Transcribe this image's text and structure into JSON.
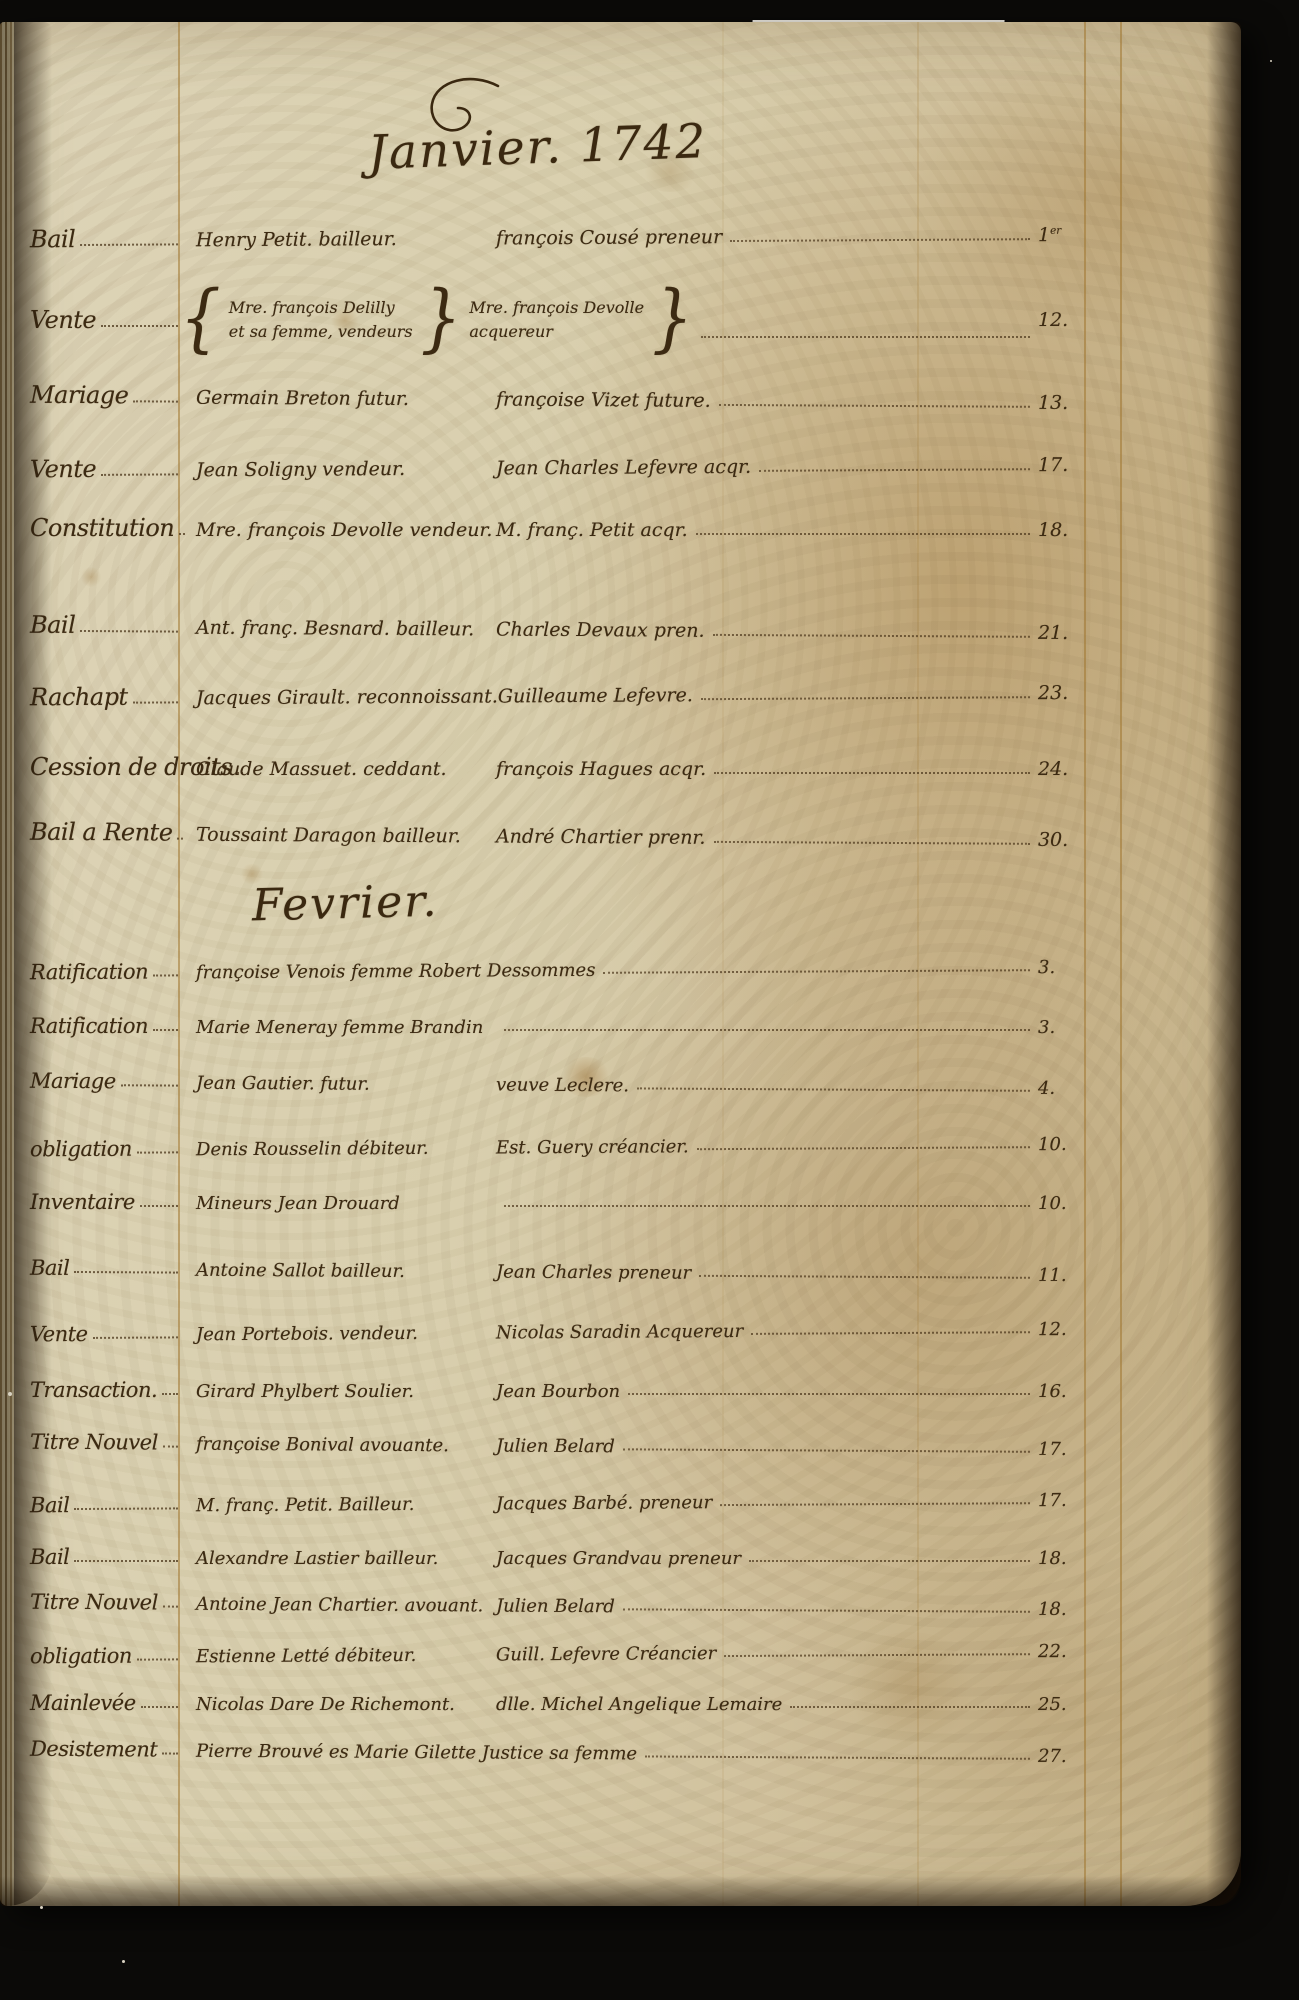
{
  "register": {
    "sections": [
      {
        "title": "Janvier. 1742",
        "entries": [
          {
            "act": "Bail",
            "party1": "Henry Petit. bailleur.",
            "party2": "françois Cousé preneur",
            "page": "1",
            "page_sup": "er"
          },
          {
            "act": "Vente",
            "braced": true,
            "party1_line1": "Mre. françois Delilly",
            "party1_line2": "et sa femme, vendeurs",
            "party2_line1": "Mre. françois Devolle",
            "party2_line2": "acquereur",
            "page": "12."
          },
          {
            "act": "Mariage",
            "party1": "Germain Breton futur.",
            "party2": "françoise Vizet future.",
            "page": "13."
          },
          {
            "act": "Vente",
            "party1": "Jean Soligny vendeur.",
            "party2": "Jean Charles Lefevre acqr.",
            "page": "17."
          },
          {
            "act": "Constitution",
            "party1": "Mre. françois Devolle vendeur.",
            "party2": "M. franç. Petit acqr.",
            "page": "18."
          },
          {
            "act": "Bail",
            "party1": "Ant. franç. Besnard. bailleur.",
            "party2": "Charles Devaux pren.",
            "page": "21."
          },
          {
            "act": "Rachapt",
            "party1": "Jacques Girault. reconnoissant.",
            "party2": "Guilleaume Lefevre.",
            "page": "23."
          },
          {
            "act": "Cession de droits",
            "party1": "Claude Massuet. ceddant.",
            "party2": "françois Hagues acqr.",
            "page": "24."
          },
          {
            "act": "Bail a Rente",
            "party1": "Toussaint Daragon bailleur.",
            "party2": "André Chartier prenr.",
            "page": "30."
          }
        ]
      },
      {
        "title": "Fevrier.",
        "entries": [
          {
            "act": "Ratification",
            "party1": "françoise Venois femme Robert Dessommes",
            "party2": "",
            "page": "3."
          },
          {
            "act": "Ratification",
            "party1": "Marie Meneray femme Brandin",
            "party2": "",
            "page": "3."
          },
          {
            "act": "Mariage",
            "party1": "Jean Gautier. futur.",
            "party2": "veuve Leclere.",
            "page": "4."
          },
          {
            "act": "obligation",
            "party1": "Denis Rousselin débiteur.",
            "party2": "Est. Guery créancier.",
            "page": "10."
          },
          {
            "act": "Inventaire",
            "party1": "Mineurs Jean Drouard",
            "party2": "",
            "page": "10."
          },
          {
            "act": "Bail",
            "party1": "Antoine Sallot bailleur.",
            "party2": "Jean Charles preneur",
            "page": "11."
          },
          {
            "act": "Vente",
            "party1": "Jean Portebois. vendeur.",
            "party2": "Nicolas Saradin Acquereur",
            "page": "12."
          },
          {
            "act": "Transaction.",
            "party1": "Girard Phylbert Soulier.",
            "party2": "Jean Bourbon",
            "page": "16."
          },
          {
            "act": "Titre Nouvel",
            "party1": "françoise Bonival avouante.",
            "party2": "Julien Belard",
            "page": "17."
          },
          {
            "act": "Bail",
            "party1": "M. franç. Petit. Bailleur.",
            "party2": "Jacques Barbé. preneur",
            "page": "17."
          },
          {
            "act": "Bail",
            "party1": "Alexandre Lastier bailleur.",
            "party2": "Jacques Grandvau preneur",
            "page": "18."
          },
          {
            "act": "Titre Nouvel",
            "party1": "Antoine Jean Chartier. avouant.",
            "party2": "Julien Belard",
            "page": "18."
          },
          {
            "act": "obligation",
            "party1": "Estienne Letté débiteur.",
            "party2": "Guill. Lefevre Créancier",
            "page": "22."
          },
          {
            "act": "Mainlevée",
            "party1": "Nicolas Dare De Richemont.",
            "party2": "dlle. Michel Angelique Lemaire",
            "page": "25."
          },
          {
            "act": "Desistement",
            "party1": "Pierre Brouvé es Marie Gilette Justice sa femme",
            "party2": "",
            "page": "27."
          }
        ]
      }
    ],
    "ink_color": "#3c2a12",
    "rule_color": "#a07630",
    "parchment_color": "#d9cfae"
  }
}
